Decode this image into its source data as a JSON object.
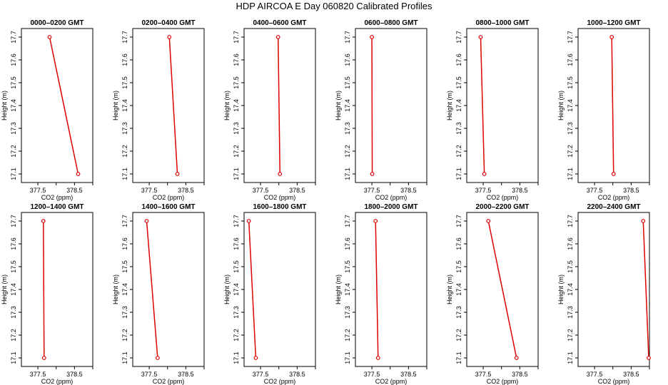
{
  "title": "HDP AIRCOA E  Day 060820  Calibrated Profiles",
  "colors": {
    "series": "#dd0000",
    "axes": "#000000",
    "background": "#ffffff"
  },
  "chart_data": [
    {
      "type": "line",
      "title": "0000–0200 GMT",
      "xlabel": "CO2 (ppm)",
      "ylabel": "Height (m)",
      "xlim": [
        377.05,
        379.0
      ],
      "ylim": [
        17.07,
        17.73
      ],
      "xticks": [
        "377.5",
        "378.5"
      ],
      "yticks": [
        "17.1",
        "17.2",
        "17.3",
        "17.4",
        "17.5",
        "17.6",
        "17.7"
      ],
      "x": [
        377.82,
        378.6
      ],
      "y": [
        17.7,
        17.1
      ]
    },
    {
      "type": "line",
      "title": "0200–0400 GMT",
      "xlabel": "CO2 (ppm)",
      "ylabel": "Height (m)",
      "xlim": [
        377.05,
        379.0
      ],
      "ylim": [
        17.07,
        17.73
      ],
      "xticks": [
        "377.5",
        "378.5"
      ],
      "yticks": [
        "17.1",
        "17.2",
        "17.3",
        "17.4",
        "17.5",
        "17.6",
        "17.7"
      ],
      "x": [
        378.05,
        378.27
      ],
      "y": [
        17.7,
        17.1
      ]
    },
    {
      "type": "line",
      "title": "0400–0600 GMT",
      "xlabel": "CO2 (ppm)",
      "ylabel": "Height (m)",
      "xlim": [
        377.05,
        379.0
      ],
      "ylim": [
        17.07,
        17.73
      ],
      "xticks": [
        "377.5",
        "378.5"
      ],
      "yticks": [
        "17.1",
        "17.2",
        "17.3",
        "17.4",
        "17.5",
        "17.6",
        "17.7"
      ],
      "x": [
        377.98,
        378.03
      ],
      "y": [
        17.7,
        17.1
      ]
    },
    {
      "type": "line",
      "title": "0600–0800 GMT",
      "xlabel": "CO2 (ppm)",
      "ylabel": "Height (m)",
      "xlim": [
        377.05,
        379.0
      ],
      "ylim": [
        17.07,
        17.73
      ],
      "xticks": [
        "377.5",
        "378.5"
      ],
      "yticks": [
        "17.1",
        "17.2",
        "17.3",
        "17.4",
        "17.5",
        "17.6",
        "17.7"
      ],
      "x": [
        377.5,
        377.51
      ],
      "y": [
        17.7,
        17.1
      ]
    },
    {
      "type": "line",
      "title": "0800–1000 GMT",
      "xlabel": "CO2 (ppm)",
      "ylabel": "Height (m)",
      "xlim": [
        377.05,
        379.0
      ],
      "ylim": [
        17.07,
        17.73
      ],
      "xticks": [
        "377.5",
        "378.5"
      ],
      "yticks": [
        "17.1",
        "17.2",
        "17.3",
        "17.4",
        "17.5",
        "17.6",
        "17.7"
      ],
      "x": [
        377.43,
        377.53
      ],
      "y": [
        17.7,
        17.1
      ]
    },
    {
      "type": "line",
      "title": "1000–1200 GMT",
      "xlabel": "CO2 (ppm)",
      "ylabel": "Height (m)",
      "xlim": [
        377.05,
        379.0
      ],
      "ylim": [
        17.07,
        17.73
      ],
      "xticks": [
        "377.5",
        "378.5"
      ],
      "yticks": [
        "17.1",
        "17.2",
        "17.3",
        "17.4",
        "17.5",
        "17.6",
        "17.7"
      ],
      "x": [
        377.97,
        378.02
      ],
      "y": [
        17.7,
        17.1
      ]
    },
    {
      "type": "line",
      "title": "1200–1400 GMT",
      "xlabel": "CO2 (ppm)",
      "ylabel": "Height (m)",
      "xlim": [
        377.05,
        379.0
      ],
      "ylim": [
        17.07,
        17.73
      ],
      "xticks": [
        "377.5",
        "378.5"
      ],
      "yticks": [
        "17.1",
        "17.2",
        "17.3",
        "17.4",
        "17.5",
        "17.6",
        "17.7"
      ],
      "x": [
        377.65,
        377.67
      ],
      "y": [
        17.7,
        17.1
      ]
    },
    {
      "type": "line",
      "title": "1400–1600 GMT",
      "xlabel": "CO2 (ppm)",
      "ylabel": "Height (m)",
      "xlim": [
        377.05,
        379.0
      ],
      "ylim": [
        17.07,
        17.73
      ],
      "xticks": [
        "377.5",
        "378.5"
      ],
      "yticks": [
        "17.1",
        "17.2",
        "17.3",
        "17.4",
        "17.5",
        "17.6",
        "17.7"
      ],
      "x": [
        377.43,
        377.73
      ],
      "y": [
        17.7,
        17.1
      ]
    },
    {
      "type": "line",
      "title": "1600–1800 GMT",
      "xlabel": "CO2 (ppm)",
      "ylabel": "Height (m)",
      "xlim": [
        377.05,
        379.0
      ],
      "ylim": [
        17.07,
        17.73
      ],
      "xticks": [
        "377.5",
        "378.5"
      ],
      "yticks": [
        "17.1",
        "17.2",
        "17.3",
        "17.4",
        "17.5",
        "17.6",
        "17.7"
      ],
      "x": [
        377.18,
        377.37
      ],
      "y": [
        17.7,
        17.1
      ]
    },
    {
      "type": "line",
      "title": "1800–2000 GMT",
      "xlabel": "CO2 (ppm)",
      "ylabel": "Height (m)",
      "xlim": [
        377.05,
        379.0
      ],
      "ylim": [
        17.07,
        17.73
      ],
      "xticks": [
        "377.5",
        "378.5"
      ],
      "yticks": [
        "17.1",
        "17.2",
        "17.3",
        "17.4",
        "17.5",
        "17.6",
        "17.7"
      ],
      "x": [
        377.6,
        377.67
      ],
      "y": [
        17.7,
        17.1
      ]
    },
    {
      "type": "line",
      "title": "2000–2200 GMT",
      "xlabel": "CO2 (ppm)",
      "ylabel": "Height (m)",
      "xlim": [
        377.05,
        379.0
      ],
      "ylim": [
        17.07,
        17.73
      ],
      "xticks": [
        "377.5",
        "378.5"
      ],
      "yticks": [
        "17.1",
        "17.2",
        "17.3",
        "17.4",
        "17.5",
        "17.6",
        "17.7"
      ],
      "x": [
        377.64,
        378.41
      ],
      "y": [
        17.7,
        17.1
      ]
    },
    {
      "type": "line",
      "title": "2200–2400 GMT",
      "xlabel": "CO2 (ppm)",
      "ylabel": "Height (m)",
      "xlim": [
        377.05,
        379.0
      ],
      "ylim": [
        17.07,
        17.73
      ],
      "xticks": [
        "377.5",
        "378.5"
      ],
      "yticks": [
        "17.1",
        "17.2",
        "17.3",
        "17.4",
        "17.5",
        "17.6",
        "17.7"
      ],
      "x": [
        378.83,
        378.98
      ],
      "y": [
        17.7,
        17.1
      ]
    }
  ]
}
